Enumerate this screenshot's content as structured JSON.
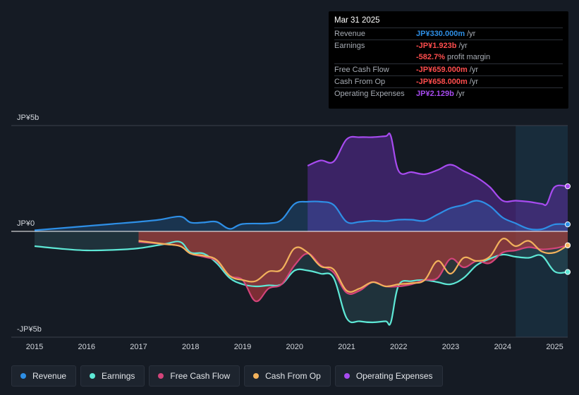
{
  "colors": {
    "revenue": "#2e8fe6",
    "earnings": "#5ee8d6",
    "free_cash_flow": "#d3447a",
    "cash_from_op": "#f2b25c",
    "operating_expenses": "#a74bf0",
    "background": "#151b24"
  },
  "tooltip": {
    "date": "Mar 31 2025",
    "rows": [
      {
        "label": "Revenue",
        "value": "JP¥330.000m",
        "unit": "/yr",
        "color": "#2e8fe6"
      },
      {
        "label": "Earnings",
        "value": "-JP¥1.923b",
        "unit": "/yr",
        "color": "#ff4d4d"
      },
      {
        "label": "",
        "value": "-582.7%",
        "unit": "profit margin",
        "color": "#ff4d4d"
      },
      {
        "label": "Free Cash Flow",
        "value": "-JP¥659.000m",
        "unit": "/yr",
        "color": "#ff4d4d"
      },
      {
        "label": "Cash From Op",
        "value": "-JP¥658.000m",
        "unit": "/yr",
        "color": "#ff4d4d"
      },
      {
        "label": "Operating Expenses",
        "value": "JP¥2.129b",
        "unit": "/yr",
        "color": "#a74bf0"
      }
    ]
  },
  "legend": [
    {
      "label": "Revenue",
      "color": "#2e8fe6"
    },
    {
      "label": "Earnings",
      "color": "#5ee8d6"
    },
    {
      "label": "Free Cash Flow",
      "color": "#d3447a"
    },
    {
      "label": "Cash From Op",
      "color": "#f2b25c"
    },
    {
      "label": "Operating Expenses",
      "color": "#a74bf0"
    }
  ],
  "chart_data": {
    "type": "line",
    "title": "",
    "units": "JP¥ billions",
    "y_tick_labels": [
      "JP¥5b",
      "JP¥0",
      "-JP¥5b"
    ],
    "y_ticks": [
      5,
      0,
      -5
    ],
    "ylim": [
      -5,
      5
    ],
    "xlim": [
      2015.0,
      2025.25
    ],
    "x_tick_labels": [
      "2015",
      "2016",
      "2017",
      "2018",
      "2019",
      "2020",
      "2021",
      "2022",
      "2023",
      "2024",
      "2025"
    ],
    "x_ticks": [
      2015,
      2016,
      2017,
      2018,
      2019,
      2020,
      2021,
      2022,
      2023,
      2024,
      2025
    ],
    "highlight_range": [
      2024.25,
      2025.25
    ],
    "series": [
      {
        "name": "Revenue",
        "key": "revenue",
        "x": [
          2015.0,
          2015.5,
          2016.0,
          2016.5,
          2017.0,
          2017.4,
          2017.8,
          2018.0,
          2018.25,
          2018.5,
          2018.75,
          2019.0,
          2019.5,
          2019.75,
          2020.0,
          2020.25,
          2020.5,
          2020.75,
          2021.0,
          2021.25,
          2021.5,
          2021.75,
          2022.0,
          2022.25,
          2022.5,
          2022.75,
          2023.0,
          2023.25,
          2023.5,
          2023.75,
          2024.0,
          2024.25,
          2024.5,
          2024.75,
          2025.0,
          2025.25
        ],
        "values": [
          0.05,
          0.15,
          0.25,
          0.35,
          0.45,
          0.55,
          0.7,
          0.42,
          0.42,
          0.45,
          0.12,
          0.35,
          0.38,
          0.55,
          1.3,
          1.4,
          1.4,
          1.25,
          0.45,
          0.45,
          0.5,
          0.48,
          0.55,
          0.55,
          0.5,
          0.8,
          1.1,
          1.25,
          1.45,
          1.2,
          0.65,
          0.38,
          0.12,
          0.1,
          0.33,
          0.33
        ]
      },
      {
        "name": "Earnings",
        "key": "earnings",
        "x": [
          2015.0,
          2015.5,
          2016.0,
          2016.5,
          2017.0,
          2017.5,
          2017.8,
          2018.0,
          2018.25,
          2018.5,
          2018.75,
          2019.0,
          2019.25,
          2019.5,
          2019.75,
          2020.0,
          2020.25,
          2020.5,
          2020.75,
          2021.0,
          2021.25,
          2021.5,
          2021.75,
          2021.85,
          2022.0,
          2022.25,
          2022.5,
          2022.75,
          2023.0,
          2023.25,
          2023.5,
          2023.75,
          2024.0,
          2024.25,
          2024.5,
          2024.75,
          2025.0,
          2025.25
        ],
        "values": [
          -0.7,
          -0.82,
          -0.9,
          -0.88,
          -0.8,
          -0.6,
          -0.5,
          -1.0,
          -1.05,
          -1.5,
          -2.2,
          -2.5,
          -2.6,
          -2.55,
          -2.5,
          -1.85,
          -1.85,
          -2.0,
          -2.2,
          -4.1,
          -4.25,
          -4.3,
          -4.25,
          -4.3,
          -2.55,
          -2.35,
          -2.3,
          -2.4,
          -2.5,
          -2.2,
          -1.6,
          -1.3,
          -1.1,
          -1.2,
          -1.25,
          -1.15,
          -1.9,
          -1.92
        ]
      },
      {
        "name": "Free Cash Flow",
        "key": "free_cash_flow",
        "x": [
          2017.0,
          2017.5,
          2017.8,
          2018.0,
          2018.25,
          2018.5,
          2018.75,
          2019.0,
          2019.25,
          2019.5,
          2019.75,
          2020.0,
          2020.25,
          2020.5,
          2020.75,
          2021.0,
          2021.25,
          2021.5,
          2021.75,
          2022.0,
          2022.25,
          2022.5,
          2022.75,
          2023.0,
          2023.25,
          2023.5,
          2023.75,
          2024.0,
          2024.25,
          2024.5,
          2024.75,
          2025.0,
          2025.25
        ],
        "values": [
          -0.5,
          -0.6,
          -0.7,
          -1.05,
          -1.2,
          -1.4,
          -2.1,
          -2.3,
          -3.3,
          -2.7,
          -2.5,
          -1.6,
          -1.05,
          -1.6,
          -1.95,
          -2.9,
          -2.8,
          -2.4,
          -2.6,
          -2.6,
          -2.5,
          -2.3,
          -2.2,
          -1.3,
          -1.7,
          -1.4,
          -1.5,
          -1.0,
          -0.9,
          -0.75,
          -0.85,
          -0.8,
          -0.66
        ]
      },
      {
        "name": "Cash From Op",
        "key": "cash_from_op",
        "x": [
          2017.0,
          2017.5,
          2017.8,
          2018.0,
          2018.25,
          2018.5,
          2018.75,
          2019.0,
          2019.25,
          2019.5,
          2019.75,
          2020.0,
          2020.25,
          2020.5,
          2020.75,
          2021.0,
          2021.25,
          2021.5,
          2021.75,
          2022.0,
          2022.25,
          2022.5,
          2022.75,
          2023.0,
          2023.25,
          2023.5,
          2023.75,
          2024.0,
          2024.25,
          2024.5,
          2024.75,
          2025.0,
          2025.25
        ],
        "values": [
          -0.45,
          -0.6,
          -0.7,
          -1.05,
          -1.15,
          -1.35,
          -2.1,
          -2.3,
          -2.35,
          -1.9,
          -1.8,
          -0.8,
          -1.0,
          -1.65,
          -1.8,
          -2.8,
          -2.7,
          -2.4,
          -2.6,
          -2.5,
          -2.45,
          -2.3,
          -1.4,
          -2.0,
          -1.25,
          -1.4,
          -1.2,
          -0.35,
          -0.7,
          -0.45,
          -0.95,
          -1.0,
          -0.66
        ]
      },
      {
        "name": "Operating Expenses",
        "key": "operating_expenses",
        "x": [
          2020.25,
          2020.5,
          2020.75,
          2021.0,
          2021.25,
          2021.5,
          2021.75,
          2021.85,
          2022.0,
          2022.25,
          2022.5,
          2022.75,
          2023.0,
          2023.25,
          2023.5,
          2023.75,
          2024.0,
          2024.25,
          2024.5,
          2024.75,
          2024.85,
          2025.0,
          2025.25
        ],
        "values": [
          3.1,
          3.35,
          3.3,
          4.35,
          4.45,
          4.45,
          4.5,
          4.5,
          2.85,
          2.8,
          2.7,
          2.9,
          3.15,
          2.85,
          2.55,
          2.1,
          1.45,
          1.45,
          1.4,
          1.3,
          1.3,
          2.1,
          2.13
        ]
      }
    ]
  }
}
